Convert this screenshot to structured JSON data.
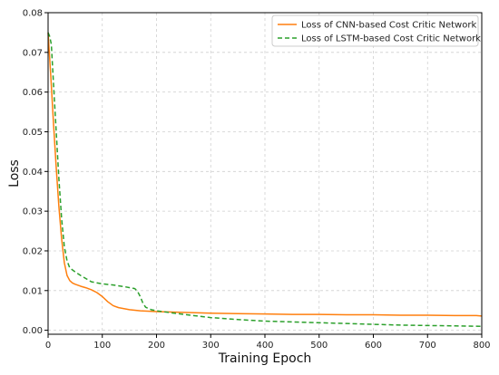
{
  "chart_data": {
    "type": "line",
    "xlabel": "Training Epoch",
    "ylabel": "Loss",
    "xlim": [
      0,
      800
    ],
    "ylim": [
      -0.001,
      0.08
    ],
    "xticks": [
      0,
      100,
      200,
      300,
      400,
      500,
      600,
      700,
      800
    ],
    "yticks": [
      0.0,
      0.01,
      0.02,
      0.03,
      0.04,
      0.05,
      0.06,
      0.07,
      0.08
    ],
    "xtick_labels": [
      "0",
      "100",
      "200",
      "300",
      "400",
      "500",
      "600",
      "700",
      "800"
    ],
    "ytick_labels": [
      "0.00",
      "0.01",
      "0.02",
      "0.03",
      "0.04",
      "0.05",
      "0.06",
      "0.07",
      "0.08"
    ],
    "grid": true,
    "legend_position": "top-right",
    "series": [
      {
        "name": "Loss of CNN-based Cost Critic Network",
        "color": "#ff7f0e",
        "style": "solid",
        "x": [
          0,
          5,
          10,
          15,
          20,
          25,
          30,
          35,
          40,
          45,
          50,
          60,
          70,
          80,
          90,
          100,
          110,
          120,
          130,
          150,
          170,
          200,
          250,
          300,
          350,
          400,
          450,
          500,
          550,
          600,
          650,
          700,
          750,
          790,
          800
        ],
        "y": [
          0.075,
          0.064,
          0.052,
          0.041,
          0.031,
          0.023,
          0.017,
          0.0138,
          0.0125,
          0.0119,
          0.0116,
          0.0111,
          0.0107,
          0.0102,
          0.0095,
          0.0085,
          0.0072,
          0.0062,
          0.0057,
          0.0052,
          0.0049,
          0.0047,
          0.0045,
          0.0043,
          0.0042,
          0.0041,
          0.004,
          0.004,
          0.0039,
          0.0039,
          0.0038,
          0.0038,
          0.0037,
          0.0037,
          0.0036
        ]
      },
      {
        "name": "Loss of LSTM-based Cost Critic Network",
        "color": "#2ca02c",
        "style": "dashed",
        "x": [
          0,
          3,
          6,
          10,
          15,
          20,
          25,
          30,
          35,
          40,
          50,
          60,
          70,
          80,
          100,
          120,
          140,
          160,
          165,
          170,
          175,
          180,
          190,
          200,
          250,
          300,
          350,
          400,
          450,
          500,
          550,
          600,
          650,
          700,
          750,
          800
        ],
        "y": [
          0.075,
          0.074,
          0.072,
          0.062,
          0.05,
          0.038,
          0.028,
          0.021,
          0.0175,
          0.0157,
          0.0147,
          0.0138,
          0.013,
          0.0122,
          0.0117,
          0.0114,
          0.011,
          0.0105,
          0.0098,
          0.0085,
          0.0068,
          0.0058,
          0.0052,
          0.0049,
          0.004,
          0.0032,
          0.0027,
          0.0023,
          0.0021,
          0.0019,
          0.0017,
          0.0015,
          0.0013,
          0.0012,
          0.0011,
          0.001
        ]
      }
    ]
  }
}
